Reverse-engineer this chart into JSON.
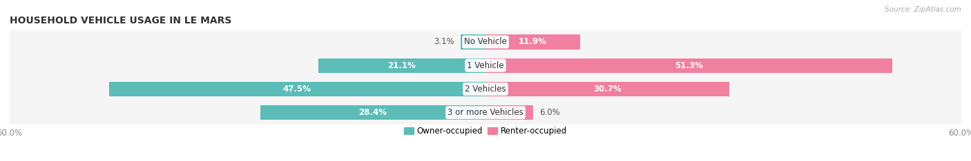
{
  "title": "HOUSEHOLD VEHICLE USAGE IN LE MARS",
  "source": "Source: ZipAtlas.com",
  "categories": [
    "No Vehicle",
    "1 Vehicle",
    "2 Vehicles",
    "3 or more Vehicles"
  ],
  "owner_values": [
    3.1,
    21.1,
    47.5,
    28.4
  ],
  "renter_values": [
    11.9,
    51.3,
    30.7,
    6.0
  ],
  "owner_color": "#5bbcb8",
  "renter_color": "#f07fa0",
  "xlim": [
    -60,
    60
  ],
  "bar_height": 0.62,
  "title_fontsize": 10,
  "label_fontsize": 8.5,
  "tick_fontsize": 8.5,
  "source_fontsize": 7.5,
  "legend_fontsize": 8.5
}
